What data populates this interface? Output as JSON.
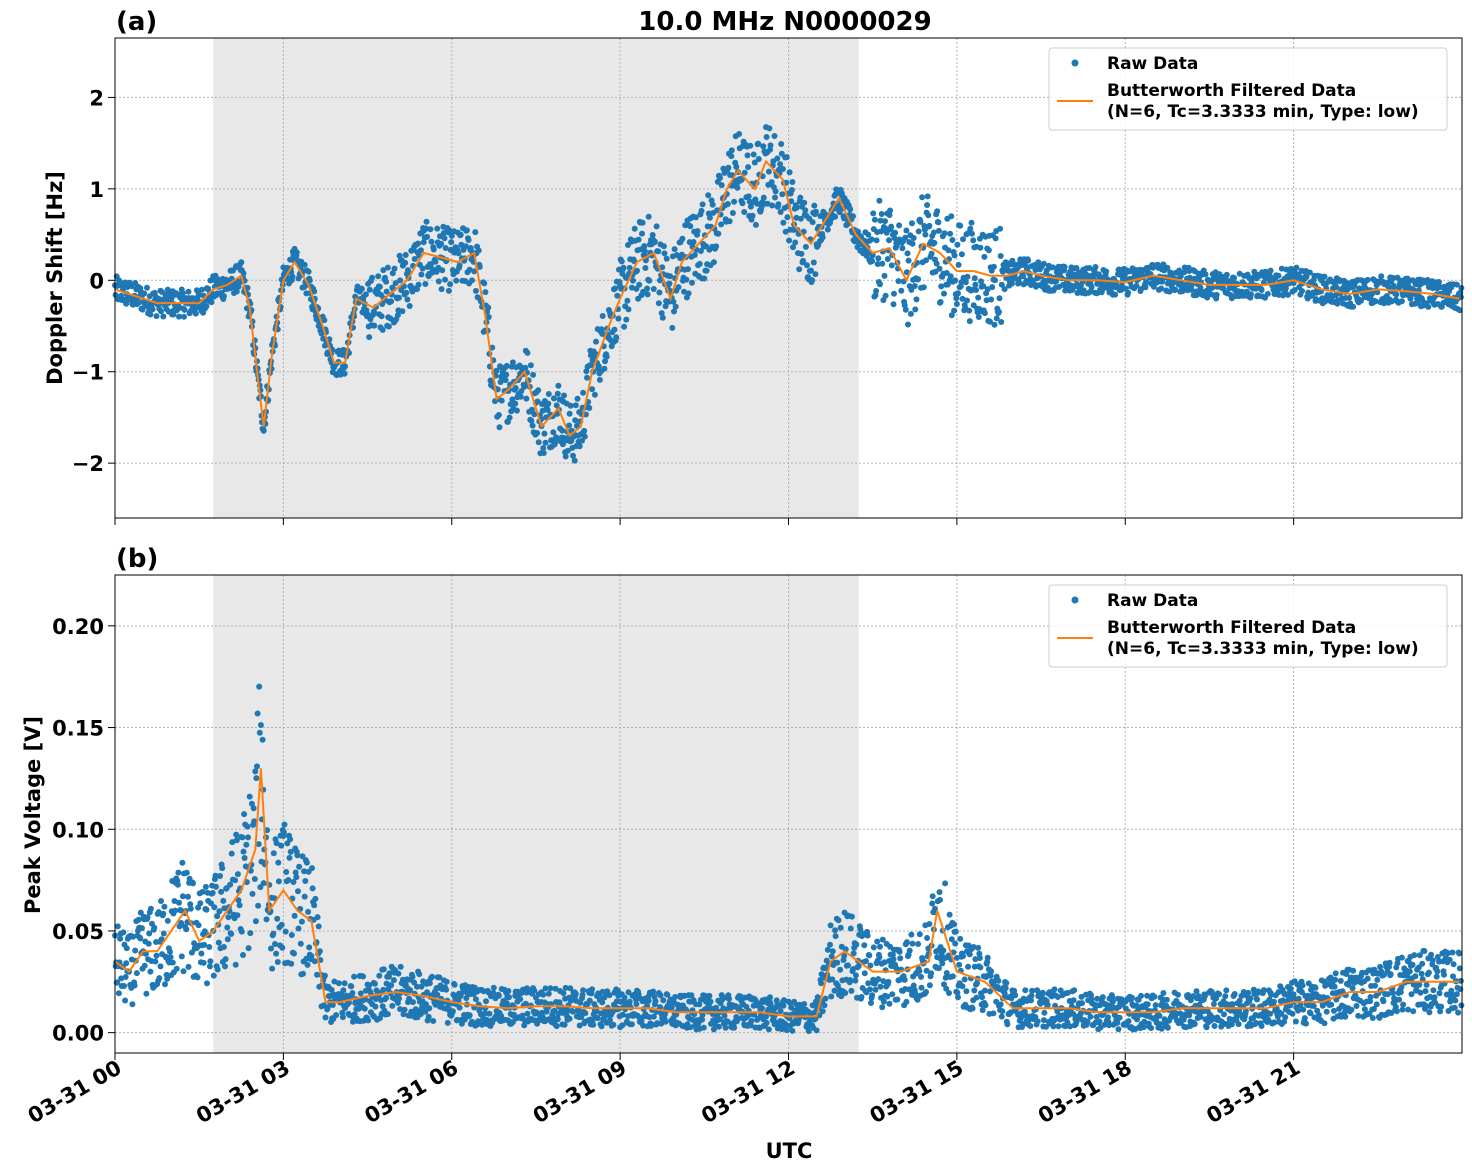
{
  "figure": {
    "title": "10.0 MHz N0000029",
    "xlabel": "UTC",
    "xticks": [
      "03-31 00",
      "03-31 03",
      "03-31 06",
      "03-31 09",
      "03-31 12",
      "03-31 15",
      "03-31 18",
      "03-31 21"
    ],
    "colors": {
      "raw": "#1f77b4",
      "filtered": "#ff7f0e",
      "shade": "#e8e8e8",
      "grid": "#b0b0b0"
    },
    "shaded_region_hours": [
      1.75,
      13.25
    ]
  },
  "chart_data": [
    {
      "panel_label": "(a)",
      "type": "scatter",
      "ylabel": "Doppler Shift [Hz]",
      "xlim": [
        0,
        24
      ],
      "ylim": [
        -2.6,
        2.65
      ],
      "yticks": [
        2,
        1,
        0,
        -1,
        -2
      ],
      "ytick_labels": [
        "2",
        "1",
        "0",
        "−1",
        "−2"
      ],
      "grid": true,
      "legend_position": "top-right",
      "legend": [
        "Raw Data",
        "Butterworth Filtered Data",
        "(N=6, Tc=3.3333 min, Type: low)"
      ],
      "series": [
        {
          "name": "Raw Data",
          "kind": "points",
          "spread_note": "dense scatter around filtered line"
        },
        {
          "name": "Butterworth Filtered Data",
          "x": [
            0,
            0.25,
            0.5,
            0.75,
            1.0,
            1.25,
            1.5,
            1.75,
            2.0,
            2.25,
            2.4,
            2.55,
            2.65,
            2.8,
            3.0,
            3.2,
            3.45,
            3.7,
            3.9,
            4.1,
            4.3,
            4.6,
            4.9,
            5.2,
            5.5,
            5.8,
            6.1,
            6.4,
            6.6,
            6.8,
            7.0,
            7.3,
            7.6,
            7.9,
            8.1,
            8.3,
            8.5,
            8.8,
            9.0,
            9.3,
            9.6,
            9.9,
            10.1,
            10.4,
            10.7,
            10.9,
            11.1,
            11.4,
            11.6,
            11.9,
            12.1,
            12.4,
            12.6,
            12.9,
            13.2,
            13.5,
            13.8,
            14.1,
            14.4,
            14.7,
            15.0,
            15.3,
            15.6,
            15.9,
            16.2,
            16.5,
            17.0,
            17.5,
            18.0,
            18.5,
            19.0,
            19.5,
            20.0,
            20.5,
            21.0,
            21.5,
            22.0,
            22.5,
            23.0,
            23.5,
            23.95
          ],
          "y": [
            -0.1,
            -0.15,
            -0.2,
            -0.25,
            -0.25,
            -0.25,
            -0.25,
            -0.1,
            -0.05,
            0.05,
            -0.3,
            -1.1,
            -1.6,
            -0.8,
            0.0,
            0.2,
            -0.05,
            -0.5,
            -0.9,
            -0.9,
            -0.2,
            -0.3,
            -0.15,
            0.0,
            0.3,
            0.25,
            0.2,
            0.3,
            -0.4,
            -1.3,
            -1.2,
            -1.0,
            -1.6,
            -1.4,
            -1.7,
            -1.6,
            -1.0,
            -0.5,
            -0.2,
            0.2,
            0.3,
            -0.2,
            0.2,
            0.4,
            0.6,
            1.0,
            1.2,
            1.0,
            1.3,
            1.1,
            0.6,
            0.4,
            0.6,
            0.9,
            0.5,
            0.3,
            0.35,
            0.0,
            0.4,
            0.3,
            0.1,
            0.1,
            0.05,
            0.05,
            0.1,
            0.05,
            0.0,
            0.0,
            -0.02,
            0.05,
            0.0,
            -0.05,
            -0.05,
            -0.05,
            0.0,
            -0.1,
            -0.15,
            -0.1,
            -0.12,
            -0.15,
            -0.2
          ]
        }
      ]
    },
    {
      "panel_label": "(b)",
      "type": "scatter",
      "ylabel": "Peak Voltage [V]",
      "xlim": [
        0,
        24
      ],
      "ylim": [
        -0.01,
        0.225
      ],
      "yticks": [
        0.2,
        0.15,
        0.1,
        0.05,
        0.0
      ],
      "ytick_labels": [
        "0.20",
        "0.15",
        "0.10",
        "0.05",
        "0.00"
      ],
      "grid": true,
      "legend_position": "top-right",
      "legend": [
        "Raw Data",
        "Butterworth Filtered Data",
        "(N=6, Tc=3.3333 min, Type: low)"
      ],
      "series": [
        {
          "name": "Raw Data",
          "kind": "points",
          "spread_note": "dense scatter around filtered line"
        },
        {
          "name": "Butterworth Filtered Data",
          "x": [
            0,
            0.25,
            0.5,
            0.75,
            1.0,
            1.25,
            1.5,
            1.75,
            2.0,
            2.25,
            2.5,
            2.6,
            2.75,
            3.0,
            3.25,
            3.5,
            3.75,
            4.0,
            4.5,
            5.0,
            5.5,
            6.0,
            6.5,
            7.0,
            7.5,
            8.0,
            8.5,
            9.0,
            9.5,
            10.0,
            10.5,
            11.0,
            11.5,
            12.0,
            12.5,
            12.75,
            13.0,
            13.25,
            13.5,
            14.0,
            14.5,
            14.65,
            15.0,
            15.5,
            16.0,
            16.5,
            17.0,
            17.5,
            18.0,
            18.5,
            19.0,
            19.5,
            20.0,
            20.5,
            21.0,
            21.5,
            22.0,
            22.5,
            23.0,
            23.5,
            23.95
          ],
          "y": [
            0.035,
            0.03,
            0.04,
            0.04,
            0.05,
            0.06,
            0.045,
            0.05,
            0.06,
            0.07,
            0.09,
            0.13,
            0.06,
            0.07,
            0.06,
            0.055,
            0.015,
            0.015,
            0.018,
            0.02,
            0.018,
            0.015,
            0.013,
            0.012,
            0.013,
            0.013,
            0.012,
            0.012,
            0.012,
            0.01,
            0.01,
            0.01,
            0.01,
            0.008,
            0.008,
            0.035,
            0.04,
            0.035,
            0.03,
            0.03,
            0.035,
            0.06,
            0.03,
            0.025,
            0.012,
            0.012,
            0.012,
            0.01,
            0.01,
            0.01,
            0.012,
            0.012,
            0.012,
            0.012,
            0.015,
            0.015,
            0.02,
            0.02,
            0.025,
            0.025,
            0.025
          ]
        }
      ]
    }
  ]
}
